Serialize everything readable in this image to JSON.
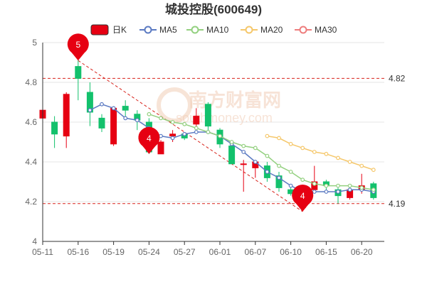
{
  "chart_data": {
    "type": "candlestick",
    "title": "城投控股(600649)",
    "legend": [
      {
        "label": "日K",
        "color": "#e60012"
      },
      {
        "label": "MA5",
        "color": "#5b7ac2"
      },
      {
        "label": "MA10",
        "color": "#93d07f"
      },
      {
        "label": "MA20",
        "color": "#f5c76a"
      },
      {
        "label": "MA30",
        "color": "#ee7d7d"
      }
    ],
    "colors": {
      "up": "#e60012",
      "down": "#13c16c",
      "grid": "#e6e6e6",
      "ref_line": "#d8231c",
      "axis": "#333333"
    },
    "y_ticks": [
      "4",
      "4.2",
      "4.4",
      "4.6",
      "4.8",
      "5"
    ],
    "ylim": [
      4.0,
      5.0
    ],
    "x_ticks": [
      {
        "label": "05-11",
        "index": 0
      },
      {
        "label": "05-16",
        "index": 3
      },
      {
        "label": "05-19",
        "index": 6
      },
      {
        "label": "05-24",
        "index": 9
      },
      {
        "label": "05-27",
        "index": 12
      },
      {
        "label": "06-01",
        "index": 15
      },
      {
        "label": "06-07",
        "index": 18
      },
      {
        "label": "06-10",
        "index": 21
      },
      {
        "label": "06-15",
        "index": 24
      },
      {
        "label": "06-20",
        "index": 27
      }
    ],
    "candles": [
      {
        "o": 4.62,
        "c": 4.66,
        "h": 4.74,
        "l": 4.56
      },
      {
        "o": 4.6,
        "c": 4.54,
        "h": 4.63,
        "l": 4.47
      },
      {
        "o": 4.53,
        "c": 4.74,
        "h": 4.75,
        "l": 4.47
      },
      {
        "o": 4.88,
        "c": 4.82,
        "h": 4.91,
        "l": 4.71
      },
      {
        "o": 4.75,
        "c": 4.65,
        "h": 4.8,
        "l": 4.58
      },
      {
        "o": 4.62,
        "c": 4.57,
        "h": 4.64,
        "l": 4.55
      },
      {
        "o": 4.49,
        "c": 4.67,
        "h": 4.68,
        "l": 4.48
      },
      {
        "o": 4.68,
        "c": 4.66,
        "h": 4.71,
        "l": 4.62
      },
      {
        "o": 4.64,
        "c": 4.61,
        "h": 4.66,
        "l": 4.56
      },
      {
        "o": 4.6,
        "c": 4.45,
        "h": 4.62,
        "l": 4.44
      },
      {
        "o": 4.44,
        "c": 4.5,
        "h": 4.51,
        "l": 4.44
      },
      {
        "o": 4.53,
        "c": 4.54,
        "h": 4.56,
        "l": 4.5
      },
      {
        "o": 4.54,
        "c": 4.52,
        "h": 4.55,
        "l": 4.51
      },
      {
        "o": 4.59,
        "c": 4.63,
        "h": 4.67,
        "l": 4.57
      },
      {
        "o": 4.69,
        "c": 4.58,
        "h": 4.7,
        "l": 4.55
      },
      {
        "o": 4.56,
        "c": 4.49,
        "h": 4.57,
        "l": 4.47
      },
      {
        "o": 4.48,
        "c": 4.39,
        "h": 4.49,
        "l": 4.39
      },
      {
        "o": 4.39,
        "c": 4.39,
        "h": 4.41,
        "l": 4.25
      },
      {
        "o": 4.37,
        "c": 4.4,
        "h": 4.41,
        "l": 4.32
      },
      {
        "o": 4.38,
        "c": 4.32,
        "h": 4.4,
        "l": 4.3
      },
      {
        "o": 4.33,
        "c": 4.27,
        "h": 4.35,
        "l": 4.25
      },
      {
        "o": 4.26,
        "c": 4.24,
        "h": 4.28,
        "l": 4.23
      },
      {
        "o": 4.17,
        "c": 4.25,
        "h": 4.26,
        "l": 4.15
      },
      {
        "o": 4.26,
        "c": 4.3,
        "h": 4.38,
        "l": 4.25
      },
      {
        "o": 4.3,
        "c": 4.28,
        "h": 4.31,
        "l": 4.25
      },
      {
        "o": 4.26,
        "c": 4.23,
        "h": 4.27,
        "l": 4.19
      },
      {
        "o": 4.22,
        "c": 4.26,
        "h": 4.27,
        "l": 4.21
      },
      {
        "o": 4.26,
        "c": 4.28,
        "h": 4.34,
        "l": 4.24
      },
      {
        "o": 4.29,
        "c": 4.22,
        "h": 4.3,
        "l": 4.21
      }
    ],
    "ma5": [
      null,
      null,
      null,
      null,
      4.66,
      4.69,
      4.67,
      4.62,
      4.61,
      4.57,
      4.53,
      4.52,
      4.54,
      4.55,
      4.55,
      4.53,
      4.49,
      4.45,
      4.4,
      4.35,
      4.32,
      4.28,
      4.25,
      4.25,
      4.25,
      4.25,
      4.26,
      4.26,
      4.25
    ],
    "ma10": [
      null,
      null,
      null,
      null,
      null,
      null,
      null,
      null,
      null,
      4.64,
      4.62,
      4.6,
      4.59,
      4.57,
      4.55,
      4.53,
      4.5,
      4.48,
      4.47,
      4.43,
      4.38,
      4.35,
      4.31,
      4.29,
      4.28,
      4.28,
      4.28,
      4.27,
      4.26
    ],
    "ma20": [
      null,
      null,
      null,
      null,
      null,
      null,
      null,
      null,
      null,
      null,
      null,
      null,
      null,
      null,
      null,
      null,
      null,
      null,
      null,
      4.53,
      4.52,
      4.49,
      4.47,
      4.45,
      4.44,
      4.42,
      4.4,
      4.38,
      4.36
    ],
    "ref_lines": [
      {
        "value": 4.82,
        "label": "4.82"
      },
      {
        "value": 4.19,
        "label": "4.19"
      }
    ],
    "markers": [
      {
        "label": "5",
        "index": 3,
        "value": 4.91
      },
      {
        "label": "4",
        "index": 9,
        "value": 4.44
      },
      {
        "label": "4",
        "index": 22,
        "value": 4.15
      }
    ],
    "watermark": {
      "text": "南方财富网",
      "sub": "southmoney.com"
    }
  }
}
